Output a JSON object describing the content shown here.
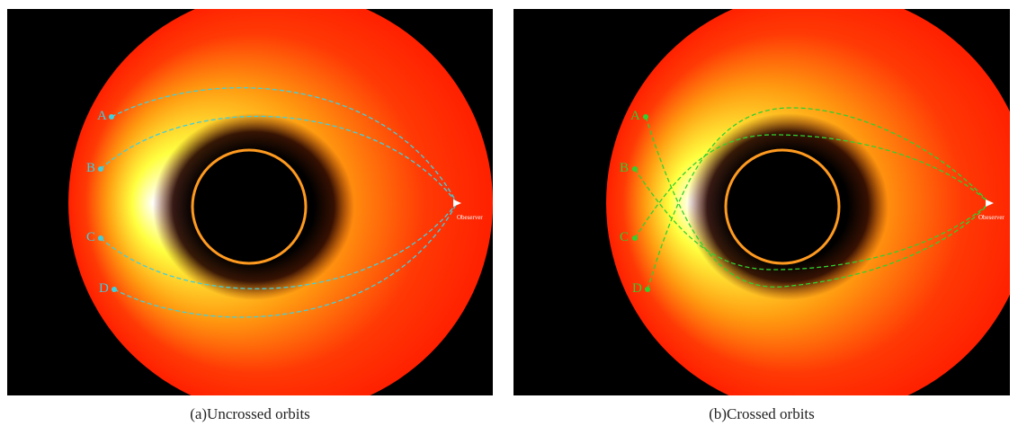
{
  "panels": [
    {
      "caption": "(a)Uncrossed orbits",
      "points": [
        "A",
        "B",
        "C",
        "D"
      ],
      "observer": "Obeserver"
    },
    {
      "caption": "(b)Crossed orbits",
      "points": [
        "A",
        "B",
        "C",
        "D"
      ],
      "observer": "Obeserver"
    }
  ]
}
